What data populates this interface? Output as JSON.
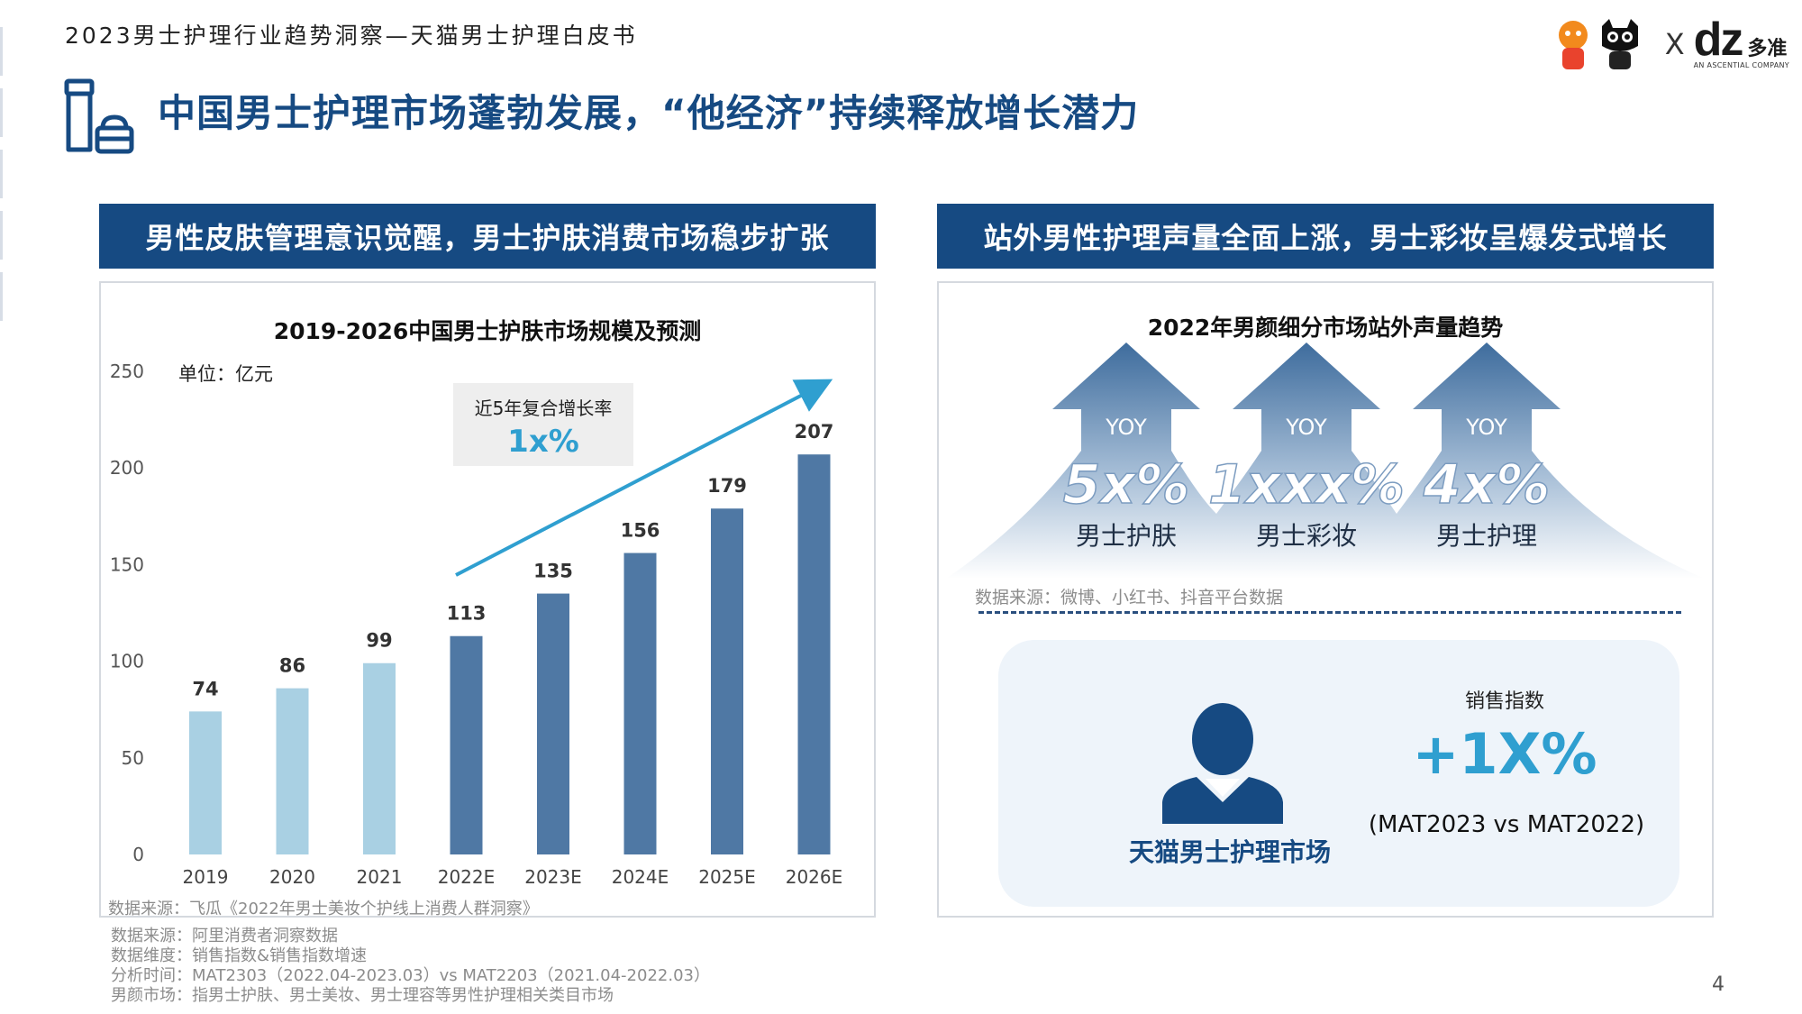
{
  "header": {
    "top_title": "2023男士护理行业趋势洞察—天猫男士护理白皮书",
    "headline": "中国男士护理市场蓬勃发展，“他经济”持续释放增长潜力",
    "logo_x": "X",
    "logo_dz": "dz",
    "logo_dz_cn": "多准",
    "logo_dz_sub": "AN ASCENTIAL COMPANY"
  },
  "left": {
    "banner": "男性皮肤管理意识觉醒，男士护肤消费市场稳步扩张",
    "unit_label": "单位：亿元",
    "cagr_label": "近5年复合增长率",
    "cagr_value": "1x%",
    "source": "数据来源：飞瓜《2022年男士美妆个护线上消费人群洞察》"
  },
  "right": {
    "banner": "站外男性护理声量全面上涨，男士彩妆呈爆发式增长",
    "chart_title": "2022年男颜细分市场站外声量趋势",
    "arrows": [
      {
        "yoy": "YOY",
        "value": "5x%",
        "label": "男士护肤"
      },
      {
        "yoy": "YOY",
        "value": "1xxx%",
        "label": "男士彩妆"
      },
      {
        "yoy": "YOY",
        "value": "4x%",
        "label": "男士护理"
      }
    ],
    "source": "数据来源：微博、小红书、抖音平台数据",
    "sales_index_label": "销售指数",
    "sales_index_value": "+1X%",
    "sales_period": "(MAT2023 vs MAT2022)",
    "market_label": "天猫男士护理市场"
  },
  "footnotes": [
    "数据来源：阿里消费者洞察数据",
    "数据维度：销售指数&销售指数增速",
    "分析时间：MAT2303（2022.04-2023.03）vs MAT2203（2021.04-2022.03）",
    "男颜市场：指男士护肤、男士美妆、男士理容等男性护理相关类目市场"
  ],
  "page_number": "4",
  "colors": {
    "brand_navy": "#164a82",
    "bar_actual": "#a9d0e3",
    "bar_forecast": "#4f78a4",
    "accent_blue": "#2f9fd0"
  },
  "chart_data": {
    "type": "bar",
    "title": "2019-2026中国男士护肤市场规模及预测",
    "categories": [
      "2019",
      "2020",
      "2021",
      "2022E",
      "2023E",
      "2024E",
      "2025E",
      "2026E"
    ],
    "values": [
      74,
      86,
      99,
      113,
      135,
      156,
      179,
      207
    ],
    "forecast_flags": [
      false,
      false,
      false,
      true,
      true,
      true,
      true,
      true
    ],
    "yticks": [
      0,
      50,
      100,
      150,
      200,
      250
    ],
    "ylim": [
      0,
      250
    ],
    "grid": false,
    "legend": "none"
  }
}
